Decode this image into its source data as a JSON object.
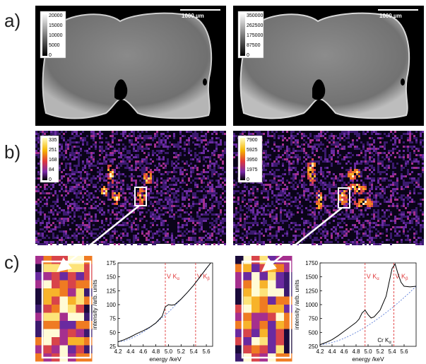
{
  "panels": {
    "a": "a)",
    "b": "b)",
    "c": "c)"
  },
  "scalebar": {
    "left": "1000 µm",
    "right": "1000 µm"
  },
  "colorbars": {
    "a_left": [
      "20000",
      "15000",
      "10000",
      "5000",
      "0"
    ],
    "a_right": [
      "350000",
      "262500",
      "175000",
      "87500",
      "0"
    ],
    "b_left": [
      "335",
      "251",
      "168",
      "84",
      "0"
    ],
    "b_right": [
      "7900",
      "5925",
      "3950",
      "1975",
      "0"
    ]
  },
  "colors": {
    "marker_line": "#e0393b",
    "spectrum": "#000000",
    "fit": "#4a6fd4"
  },
  "chart_data": [
    {
      "type": "line",
      "title": "",
      "xlabel": "energy /keV",
      "ylabel": "intensity /arb. units",
      "xlim": [
        4.2,
        5.7
      ],
      "ylim": [
        25,
        175
      ],
      "xticks": [
        "4.2",
        "4.4",
        "4.6",
        "4.8",
        "5.0",
        "5.2",
        "5.4",
        "5.6"
      ],
      "yticks": [
        "25",
        "50",
        "75",
        "100",
        "125",
        "150",
        "175"
      ],
      "markers": [
        {
          "label": "V K",
          "sub": "α",
          "x": 4.95
        },
        {
          "label": "V K",
          "sub": "β",
          "x": 5.43
        }
      ],
      "series": [
        {
          "x": [
            4.2,
            4.3,
            4.4,
            4.5,
            4.6,
            4.7,
            4.8,
            4.9,
            4.95,
            5.0,
            5.05,
            5.1,
            5.2,
            5.3,
            5.4,
            5.5,
            5.6,
            5.67
          ],
          "values": [
            33,
            37,
            42,
            48,
            53,
            59,
            67,
            79,
            96,
            100,
            99,
            100,
            110,
            122,
            135,
            150,
            165,
            175
          ]
        }
      ]
    },
    {
      "type": "line",
      "title": "",
      "xlabel": "energy /keV",
      "ylabel": "intensity /arb. units",
      "xlim": [
        4.2,
        5.8
      ],
      "ylim": [
        250,
        1750
      ],
      "xticks": [
        "4.2",
        "4.4",
        "4.6",
        "4.8",
        "5.0",
        "5.2",
        "5.4",
        "5.6"
      ],
      "yticks": [
        "250",
        "500",
        "750",
        "1000",
        "1250",
        "1500",
        "1750"
      ],
      "markers": [
        {
          "label": "V K",
          "sub": "α",
          "x": 4.95
        },
        {
          "label": "V K",
          "sub": "β",
          "x": 5.43
        }
      ],
      "annotation": {
        "label": "Cr K",
        "sub": "α",
        "x": 5.41
      },
      "series": [
        {
          "x": [
            4.2,
            4.3,
            4.4,
            4.5,
            4.6,
            4.7,
            4.8,
            4.85,
            4.9,
            4.95,
            5.0,
            5.05,
            5.1,
            5.2,
            5.3,
            5.35,
            5.4,
            5.45,
            5.5,
            5.55,
            5.6,
            5.7,
            5.8
          ],
          "values": [
            280,
            320,
            370,
            440,
            520,
            600,
            680,
            740,
            850,
            900,
            820,
            760,
            780,
            900,
            1150,
            1400,
            1650,
            1730,
            1550,
            1400,
            1330,
            1320,
            1330
          ]
        }
      ]
    }
  ]
}
